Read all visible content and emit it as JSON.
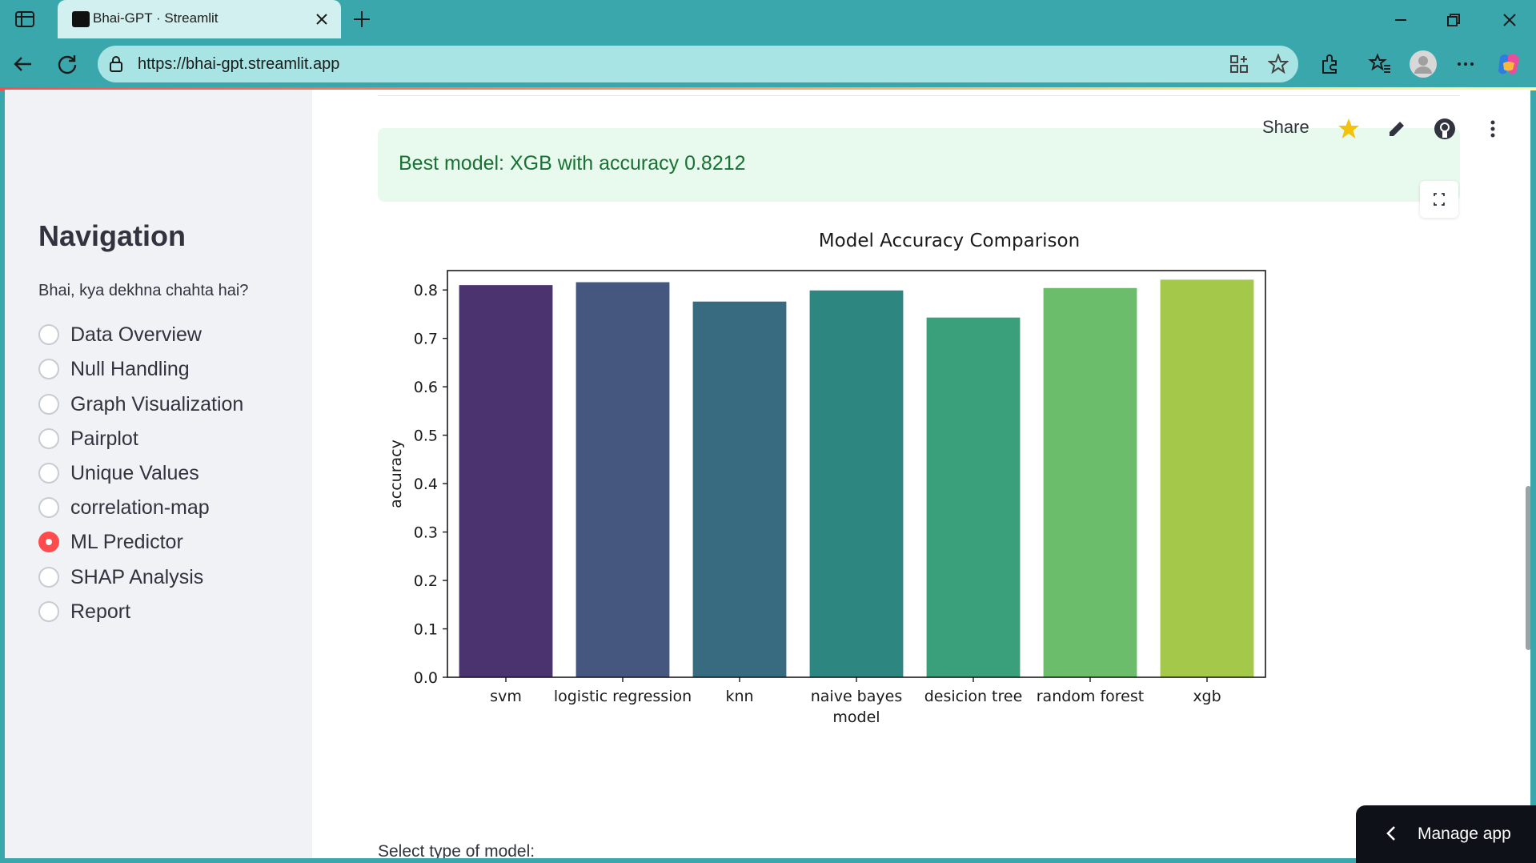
{
  "browser": {
    "tab_title": "Bhai-GPT · Streamlit",
    "url": "https://bhai-gpt.streamlit.app"
  },
  "sidebar": {
    "heading": "Navigation",
    "prompt": "Bhai, kya dekhna chahta hai?",
    "options": [
      {
        "label": "Data Overview",
        "selected": false
      },
      {
        "label": "Null Handling",
        "selected": false
      },
      {
        "label": "Graph Visualization",
        "selected": false
      },
      {
        "label": "Pairplot",
        "selected": false
      },
      {
        "label": "Unique Values",
        "selected": false
      },
      {
        "label": "correlation-map",
        "selected": false
      },
      {
        "label": "ML Predictor",
        "selected": true
      },
      {
        "label": "SHAP Analysis",
        "selected": false
      },
      {
        "label": "Report",
        "selected": false
      }
    ]
  },
  "header": {
    "share_label": "Share"
  },
  "main": {
    "success_message": "Best model: XGB with accuracy 0.8212",
    "select_label": "Select type of model:"
  },
  "manage_app": {
    "label": "Manage app"
  },
  "colors": {
    "accent": "#ff4b4b",
    "success_bg": "#e8f9ee",
    "success_text": "#177233"
  },
  "chart_data": {
    "type": "bar",
    "title": "Model Accuracy Comparison",
    "xlabel": "model",
    "ylabel": "accuracy",
    "categories": [
      "svm",
      "logistic regression",
      "knn",
      "naive bayes",
      "desicion tree",
      "random forest",
      "xgb"
    ],
    "values": [
      0.81,
      0.816,
      0.776,
      0.799,
      0.743,
      0.804,
      0.8212
    ],
    "bar_colors": [
      "#4a336f",
      "#45577f",
      "#386b80",
      "#2e8680",
      "#3aa07b",
      "#6bbd6b",
      "#a3c84a"
    ],
    "ylim": [
      0,
      0.84
    ],
    "yticks": [
      0.0,
      0.1,
      0.2,
      0.3,
      0.4,
      0.5,
      0.6,
      0.7,
      0.8
    ],
    "grid": false
  }
}
